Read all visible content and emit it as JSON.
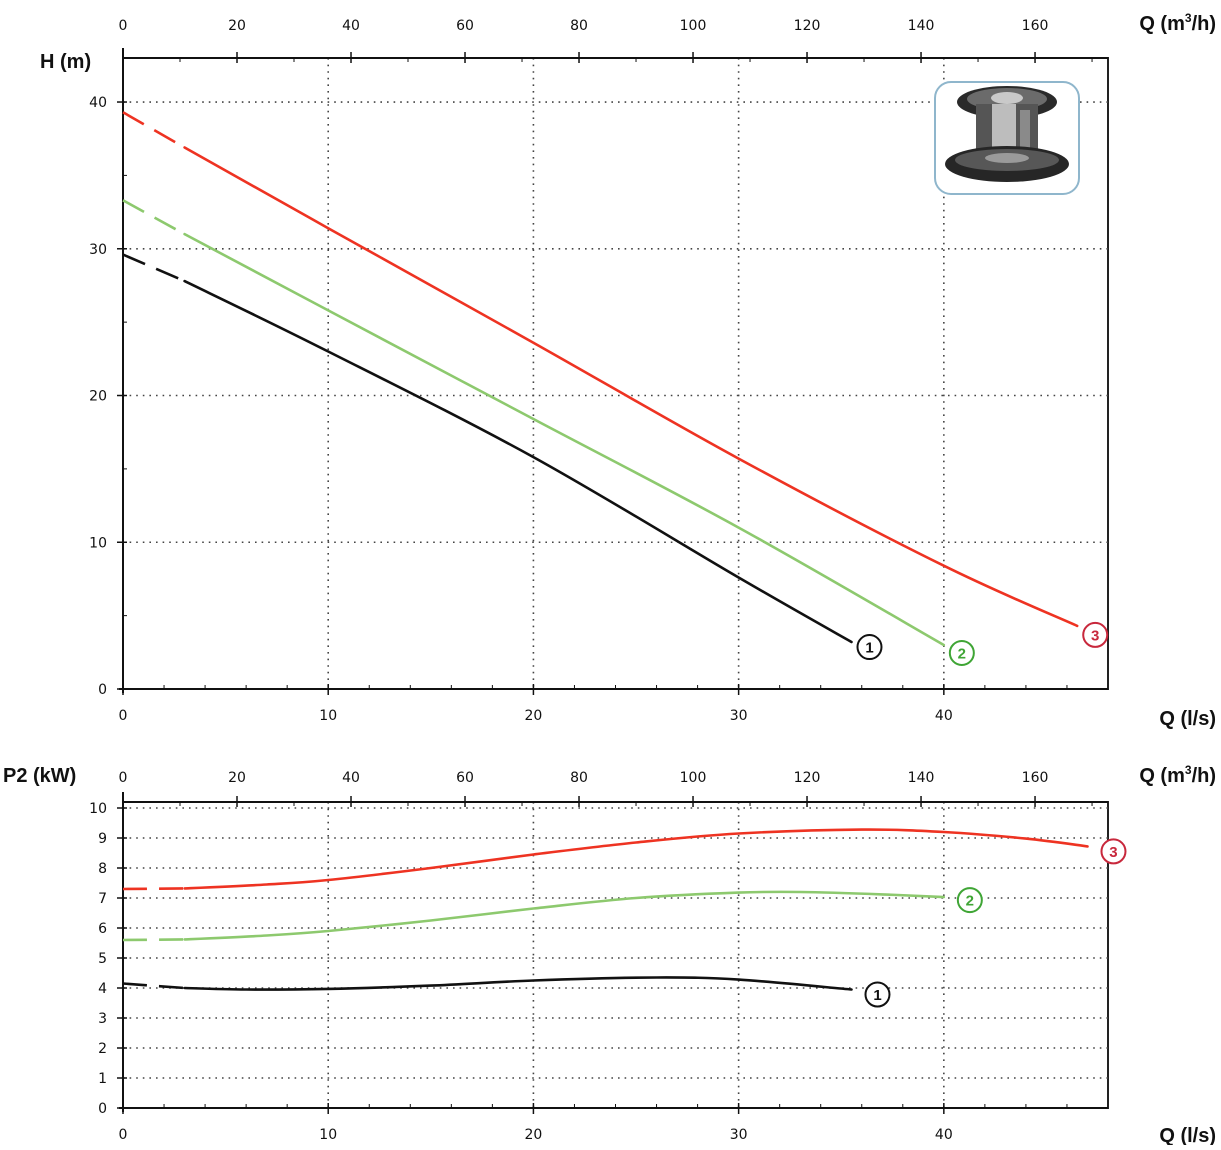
{
  "chart_data": [
    {
      "type": "line",
      "ylabel": "H (m)",
      "xlabel": "Q (l/s)",
      "x2label_prefix": "Q (m",
      "x2label_sup": "3",
      "x2label_suffix": "/h)",
      "xlim": [
        0,
        48
      ],
      "ylim": [
        0,
        43
      ],
      "xticks": [
        0,
        10,
        20,
        30,
        40
      ],
      "x2ticks": [
        0,
        20,
        40,
        60,
        80,
        100,
        120,
        140,
        160
      ],
      "yticks": [
        0,
        10,
        20,
        30,
        40
      ],
      "grid": true,
      "series": [
        {
          "name": "1",
          "color": "#111111",
          "dashed_until": 3,
          "x": [
            0,
            3,
            10,
            20,
            30,
            35.5
          ],
          "y": [
            29.6,
            27.8,
            23.0,
            15.8,
            7.6,
            3.2
          ]
        },
        {
          "name": "2",
          "color": "#8dc96e",
          "dashed_until": 3,
          "x": [
            0,
            3,
            10,
            20,
            30,
            40
          ],
          "y": [
            33.3,
            31.0,
            25.8,
            18.4,
            11.0,
            3.0
          ]
        },
        {
          "name": "3",
          "color": "#ee3322",
          "dashed_until": 3,
          "x": [
            0,
            3,
            10,
            20,
            30,
            40,
            46.5
          ],
          "y": [
            39.3,
            36.9,
            31.4,
            23.6,
            15.7,
            8.4,
            4.3
          ]
        }
      ]
    },
    {
      "type": "line",
      "ylabel": "P2 (kW)",
      "xlabel": "Q (l/s)",
      "x2label_prefix": "Q (m",
      "x2label_sup": "3",
      "x2label_suffix": "/h)",
      "xlim": [
        0,
        48
      ],
      "ylim": [
        0,
        10.2
      ],
      "xticks": [
        0,
        10,
        20,
        30,
        40
      ],
      "x2ticks": [
        0,
        20,
        40,
        60,
        80,
        100,
        120,
        140,
        160
      ],
      "yticks": [
        0,
        1,
        2,
        3,
        4,
        5,
        6,
        7,
        8,
        9,
        10
      ],
      "grid": true,
      "series": [
        {
          "name": "1",
          "color": "#111111",
          "dashed_until": 3,
          "x": [
            0,
            3,
            6,
            10,
            15,
            20,
            26,
            30,
            35.5
          ],
          "y": [
            4.15,
            4.0,
            3.95,
            3.97,
            4.08,
            4.25,
            4.35,
            4.28,
            3.95
          ]
        },
        {
          "name": "2",
          "color": "#8dc96e",
          "dashed_until": 3,
          "x": [
            0,
            3,
            7,
            10,
            15,
            20,
            25,
            30,
            33,
            37,
            40
          ],
          "y": [
            5.6,
            5.62,
            5.75,
            5.9,
            6.25,
            6.65,
            7.0,
            7.18,
            7.2,
            7.12,
            7.03
          ]
        },
        {
          "name": "3",
          "color": "#ee3322",
          "dashed_until": 3,
          "x": [
            0,
            3,
            7,
            10,
            15,
            20,
            25,
            30,
            36,
            40,
            44,
            47
          ],
          "y": [
            7.3,
            7.32,
            7.45,
            7.6,
            8.0,
            8.45,
            8.85,
            9.15,
            9.28,
            9.2,
            8.98,
            8.72
          ]
        }
      ]
    }
  ],
  "colors": {
    "axis": "#111111",
    "grid": "#444444",
    "frame": "#222222",
    "label_1": "#111111",
    "label_2": "#3fa535",
    "label_3": "#c8283c",
    "photo_border": "#8fb6cc"
  },
  "icon": "pump-impeller-photo"
}
